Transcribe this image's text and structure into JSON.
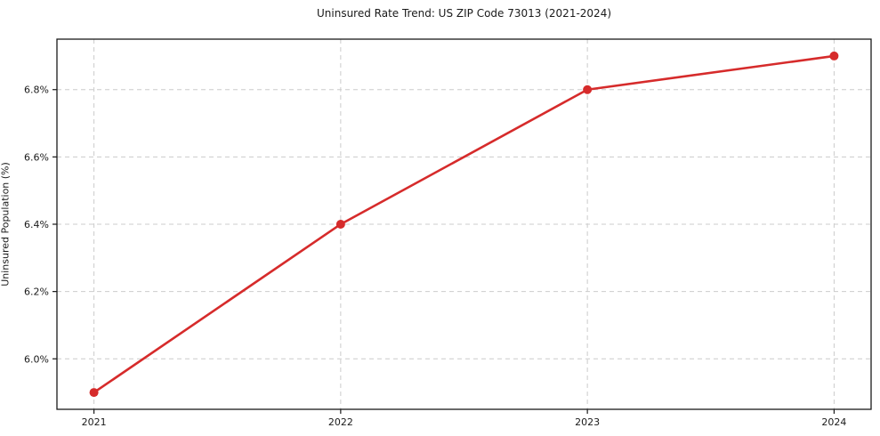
{
  "chart_data": {
    "type": "line",
    "title": "Uninsured Rate Trend: US ZIP Code 73013 (2021-2024)",
    "xlabel": "",
    "ylabel": "Uninsured Population (%)",
    "x": [
      2021,
      2022,
      2023,
      2024
    ],
    "series": [
      {
        "name": "Uninsured Rate",
        "values": [
          5.9,
          6.4,
          6.8,
          6.9
        ]
      }
    ],
    "x_tick_labels": [
      "2021",
      "2022",
      "2023",
      "2024"
    ],
    "y_ticks": [
      6.0,
      6.2,
      6.4,
      6.6,
      6.8
    ],
    "y_tick_labels": [
      "6.0%",
      "6.2%",
      "6.4%",
      "6.6%",
      "6.8%"
    ],
    "xlim": [
      2020.85,
      2024.15
    ],
    "ylim": [
      5.85,
      6.95
    ],
    "grid": "on",
    "grid_style": "dashed",
    "legend": "none",
    "colors": {
      "line": "#d62b2b",
      "marker": "#d62b2b",
      "grid": "#cccccc",
      "axis": "#1a1a1a",
      "text": "#1a1a1a",
      "background": "#ffffff"
    }
  }
}
